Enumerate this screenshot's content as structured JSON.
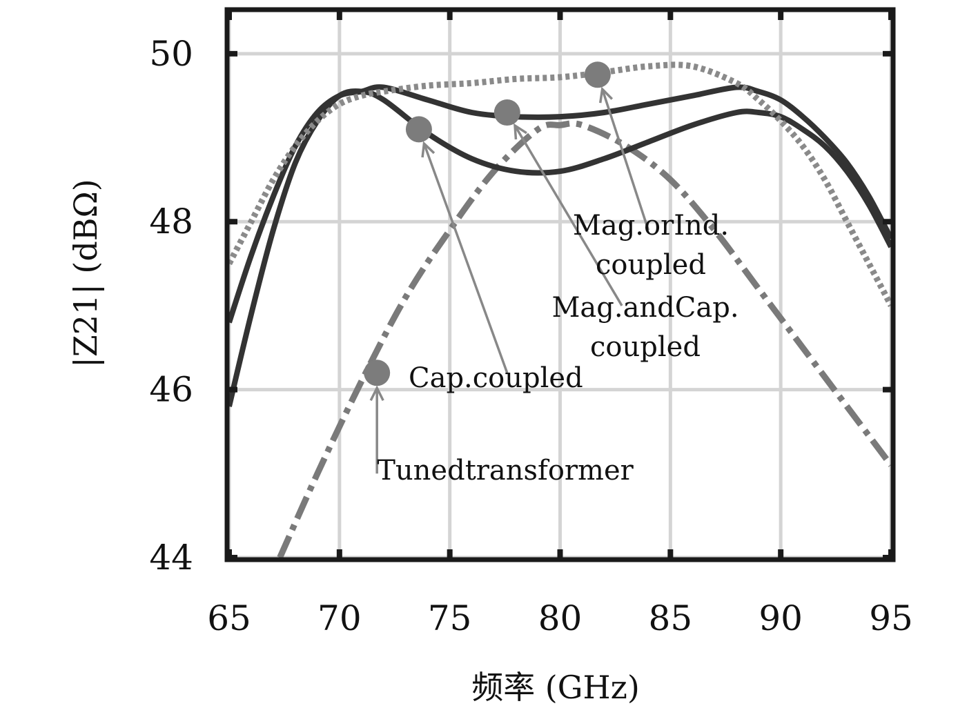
{
  "chart_data": {
    "type": "line",
    "title": "",
    "xlabel": "频率 (GHz)",
    "ylabel": "|Z21| (dBΩ)",
    "xlim": [
      65,
      95
    ],
    "ylim": [
      44,
      50.5
    ],
    "xticks": [
      65,
      70,
      75,
      80,
      85,
      90,
      95
    ],
    "yticks": [
      44,
      46,
      48,
      50
    ],
    "xtick_labels": [
      "65",
      "70",
      "75",
      "80",
      "85",
      "90",
      "95"
    ],
    "ytick_labels": [
      "44",
      "46",
      "48",
      "50"
    ],
    "grid": true,
    "legend": "none",
    "series": [
      {
        "name": "Tunedtransformer",
        "style": "dashdot",
        "color": "#7a7a7a",
        "x": [
          67.3,
          69,
          71,
          73,
          75,
          77,
          79,
          80,
          81,
          83,
          85,
          87,
          89,
          91,
          93,
          95
        ],
        "y": [
          44.0,
          45.0,
          46.1,
          47.1,
          47.9,
          48.6,
          49.1,
          49.15,
          49.15,
          48.9,
          48.5,
          47.9,
          47.2,
          46.5,
          45.8,
          45.1
        ]
      },
      {
        "name": "Cap.coupled",
        "style": "solid",
        "color": "#333333",
        "x": [
          65,
          66,
          67,
          68,
          69,
          70,
          71,
          72,
          74,
          76,
          78,
          80,
          82,
          84,
          86,
          88,
          89,
          90,
          91,
          92,
          93,
          94,
          95
        ],
        "y": [
          45.8,
          46.9,
          47.9,
          48.7,
          49.2,
          49.5,
          49.55,
          49.45,
          49.05,
          48.75,
          48.6,
          48.6,
          48.75,
          48.95,
          49.15,
          49.3,
          49.3,
          49.25,
          49.1,
          48.9,
          48.6,
          48.2,
          47.7
        ]
      },
      {
        "name": "Mag.andCap.coupled",
        "style": "solid",
        "color": "#333333",
        "x": [
          65,
          66,
          67,
          68,
          69,
          70,
          71,
          72,
          74,
          76,
          78,
          80,
          82,
          84,
          86,
          88,
          89,
          90,
          91,
          92,
          93,
          94,
          95
        ],
        "y": [
          46.8,
          47.6,
          48.3,
          48.9,
          49.3,
          49.5,
          49.55,
          49.6,
          49.45,
          49.3,
          49.25,
          49.25,
          49.3,
          49.4,
          49.5,
          49.6,
          49.55,
          49.45,
          49.25,
          49.0,
          48.7,
          48.3,
          47.8
        ]
      },
      {
        "name": "Mag.orInd.coupled",
        "style": "dotted",
        "color": "#8a8a8a",
        "x": [
          65,
          66,
          67,
          68,
          69,
          70,
          71,
          72,
          74,
          76,
          78,
          80,
          82,
          84,
          86,
          88,
          89,
          90,
          91,
          92,
          93,
          94,
          95
        ],
        "y": [
          47.5,
          48.0,
          48.5,
          48.9,
          49.2,
          49.4,
          49.5,
          49.55,
          49.62,
          49.65,
          49.7,
          49.72,
          49.78,
          49.85,
          49.85,
          49.65,
          49.45,
          49.2,
          48.9,
          48.5,
          48.0,
          47.5,
          47.0
        ]
      }
    ],
    "annotations": [
      {
        "lines": [
          "Tunedtransformer"
        ],
        "marker": [
          71.7,
          46.2
        ],
        "text_anchor": [
          71.7,
          45.0
        ]
      },
      {
        "lines": [
          "Cap.coupled"
        ],
        "marker": [
          73.6,
          49.1
        ],
        "text_anchor": [
          77.6,
          46.2
        ]
      },
      {
        "lines": [
          "Mag.andCap.",
          "coupled"
        ],
        "marker": [
          77.6,
          49.3
        ],
        "text_anchor": [
          82.8,
          47.0
        ]
      },
      {
        "lines": [
          "Mag.orInd.",
          "coupled"
        ],
        "marker": [
          81.7,
          49.75
        ],
        "text_anchor": [
          84.0,
          47.9
        ]
      }
    ]
  },
  "colors": {
    "frame": "#1a1a1a",
    "grid": "#d4d4d4",
    "marker": "#7c7c7c",
    "arrow": "#888888"
  }
}
